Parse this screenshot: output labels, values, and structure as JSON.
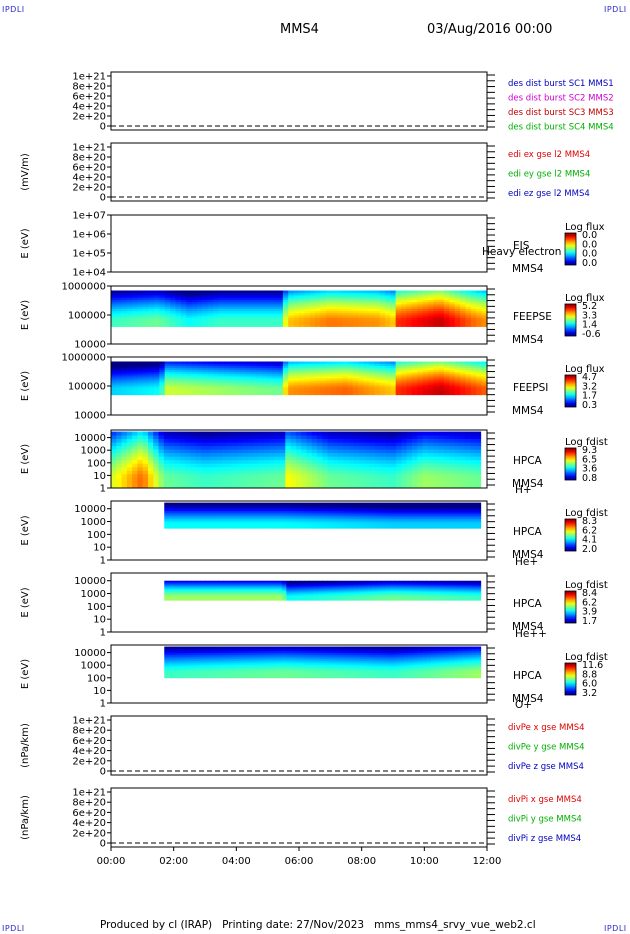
{
  "header": {
    "corner_label": "IPDLI",
    "spacecraft": "MMS4",
    "datetime": "03/Aug/2016 00:00"
  },
  "footer": {
    "produced_by": "Produced by cl (IRAP)",
    "printing_date": "Printing date: 27/Nov/2023",
    "script_name": "mms_mms4_srvy_vue_web2.cl"
  },
  "colors": {
    "panel_border": "#000000",
    "dashed_zero": "#000000",
    "series_red": "#e00000",
    "series_green": "#00b000",
    "series_blue": "#0000c0",
    "series_magenta": "#d000d0",
    "series_darkred": "#c00000"
  },
  "chart_data": [
    {
      "type": "line",
      "panel": "des dist burst",
      "ylabel": "",
      "yticks": [
        "1e+21",
        "8e+20",
        "6e+20",
        "4e+20",
        "2e+20",
        "0"
      ],
      "ylim": [
        0,
        1e+21
      ],
      "xlim": [
        "00:00",
        "12:00"
      ],
      "zero_line": "dashed",
      "series": [
        {
          "name": "des dist burst SC1 MMS1",
          "color": "#0000c0",
          "values": []
        },
        {
          "name": "des dist burst SC2 MMS2",
          "color": "#d000d0",
          "values": []
        },
        {
          "name": "des dist burst SC3 MMS3",
          "color": "#c00000",
          "values": []
        },
        {
          "name": "des dist burst SC4 MMS4",
          "color": "#00b000",
          "values": []
        }
      ]
    },
    {
      "type": "line",
      "panel": "edi e gse l2",
      "ylabel": "(mV/m)",
      "yticks": [
        "1e+21",
        "8e+20",
        "6e+20",
        "4e+20",
        "2e+20",
        "0"
      ],
      "ylim": [
        0,
        1e+21
      ],
      "zero_line": "dashed",
      "series": [
        {
          "name": "edi ex gse l2 MMS4",
          "color": "#e00000",
          "values": []
        },
        {
          "name": "edi ey gse l2 MMS4",
          "color": "#00b000",
          "values": []
        },
        {
          "name": "edi ez gse l2 MMS4",
          "color": "#0000c0",
          "values": []
        }
      ]
    },
    {
      "type": "heatmap",
      "panel": "EIS",
      "ylabel": "E (eV)",
      "yscale": "log",
      "yticks": [
        "1e+07",
        "1e+06",
        "1e+05",
        "1e+04"
      ],
      "ylim": [
        10000,
        10000000
      ],
      "instrument": "EIS",
      "instrument_overlay": "Heavy electron to",
      "spacecraft": "MMS4",
      "colorbar_title": "Log flux",
      "colorbar_ticks": [
        "0.0",
        "0.0",
        "0.0",
        "0.0"
      ],
      "profile": []
    },
    {
      "type": "heatmap",
      "panel": "FEEPSE",
      "ylabel": "E (eV)",
      "yscale": "log",
      "yticks": [
        "1000000",
        "100000",
        "10000"
      ],
      "ylim": [
        10000,
        1000000
      ],
      "instrument": "FEEPSE",
      "spacecraft": "MMS4",
      "colorbar_title": "Log flux",
      "colorbar_ticks": [
        "5.2",
        "3.3",
        "1.4",
        "-0.6"
      ],
      "data_elow": 40000,
      "data_ehigh": 700000,
      "profile": [
        {
          "t": 0.0,
          "level": 0.45
        },
        {
          "t": 1.5,
          "level": 0.5
        },
        {
          "t": 2.5,
          "level": 0.4
        },
        {
          "t": 3.5,
          "level": 0.45
        },
        {
          "t": 5.5,
          "level": 0.45
        },
        {
          "t": 5.6,
          "level": 0.7
        },
        {
          "t": 7.0,
          "level": 0.78
        },
        {
          "t": 8.5,
          "level": 0.75
        },
        {
          "t": 9.0,
          "level": 0.7
        },
        {
          "t": 9.1,
          "level": 0.85
        },
        {
          "t": 10.5,
          "level": 0.95
        },
        {
          "t": 11.5,
          "level": 0.8
        },
        {
          "t": 12.0,
          "level": 0.75
        }
      ]
    },
    {
      "type": "heatmap",
      "panel": "FEEPSI",
      "ylabel": "E (eV)",
      "yscale": "log",
      "yticks": [
        "1000000",
        "100000",
        "10000"
      ],
      "ylim": [
        10000,
        1000000
      ],
      "instrument": "FEEPSI",
      "spacecraft": "MMS4",
      "colorbar_title": "Log flux",
      "colorbar_ticks": [
        "4.7",
        "3.2",
        "1.7",
        "0.3"
      ],
      "data_elow": 50000,
      "data_ehigh": 700000,
      "profile": [
        {
          "t": 0.0,
          "level": 0.35
        },
        {
          "t": 1.6,
          "level": 0.4
        },
        {
          "t": 1.7,
          "level": 0.6
        },
        {
          "t": 3.5,
          "level": 0.55
        },
        {
          "t": 5.5,
          "level": 0.5
        },
        {
          "t": 5.6,
          "level": 0.75
        },
        {
          "t": 7.5,
          "level": 0.8
        },
        {
          "t": 9.0,
          "level": 0.7
        },
        {
          "t": 9.1,
          "level": 0.85
        },
        {
          "t": 10.5,
          "level": 0.95
        },
        {
          "t": 12.0,
          "level": 0.8
        }
      ]
    },
    {
      "type": "heatmap",
      "panel": "HPCA H+",
      "ylabel": "E (eV)",
      "yscale": "log",
      "yticks": [
        "10000",
        "1000",
        "100",
        "10",
        "1"
      ],
      "ylim": [
        1,
        40000
      ],
      "instrument": "HPCA",
      "spacecraft": "MMS4",
      "species": "H+",
      "colorbar_title": "Log fdist",
      "colorbar_ticks": [
        "9.3",
        "6.5",
        "3.6",
        "0.8"
      ],
      "data_elow": 1,
      "data_ehigh": 30000,
      "t_end": 11.8,
      "profile": [
        {
          "t": 0.0,
          "level": 0.6
        },
        {
          "t": 1.0,
          "level": 0.8
        },
        {
          "t": 1.7,
          "level": 0.5
        },
        {
          "t": 3.0,
          "level": 0.45
        },
        {
          "t": 5.5,
          "level": 0.5
        },
        {
          "t": 5.6,
          "level": 0.65
        },
        {
          "t": 7.0,
          "level": 0.5
        },
        {
          "t": 9.0,
          "level": 0.45
        },
        {
          "t": 10.0,
          "level": 0.55
        },
        {
          "t": 11.8,
          "level": 0.5
        }
      ]
    },
    {
      "type": "heatmap",
      "panel": "HPCA He+",
      "ylabel": "E (eV)",
      "yscale": "log",
      "yticks": [
        "10000",
        "1000",
        "100",
        "10",
        "1"
      ],
      "ylim": [
        1,
        40000
      ],
      "instrument": "HPCA",
      "spacecraft": "MMS4",
      "species": "He+",
      "colorbar_title": "Log fdist",
      "colorbar_ticks": [
        "8.3",
        "6.2",
        "4.1",
        "2.0"
      ],
      "data_elow": 300,
      "data_ehigh": 30000,
      "t_start": 1.7,
      "t_end": 11.8,
      "profile": [
        {
          "t": 1.7,
          "level": 0.4
        },
        {
          "t": 5.5,
          "level": 0.4
        },
        {
          "t": 9.0,
          "level": 0.35
        },
        {
          "t": 11.8,
          "level": 0.35
        }
      ]
    },
    {
      "type": "heatmap",
      "panel": "HPCA He++",
      "ylabel": "E (eV)",
      "yscale": "log",
      "yticks": [
        "10000",
        "1000",
        "100",
        "10",
        "1"
      ],
      "ylim": [
        1,
        40000
      ],
      "instrument": "HPCA",
      "spacecraft": "MMS4",
      "species": "He++",
      "colorbar_title": "Log fdist",
      "colorbar_ticks": [
        "8.4",
        "6.2",
        "3.9",
        "1.7"
      ],
      "data_elow": 300,
      "data_ehigh": 10000,
      "t_start": 1.7,
      "t_end": 11.8,
      "profile": [
        {
          "t": 1.7,
          "level": 0.55
        },
        {
          "t": 5.5,
          "level": 0.55
        },
        {
          "t": 5.6,
          "level": 0.4
        },
        {
          "t": 9.0,
          "level": 0.5
        },
        {
          "t": 11.8,
          "level": 0.45
        }
      ]
    },
    {
      "type": "heatmap",
      "panel": "HPCA O+",
      "ylabel": "E (eV)",
      "yscale": "log",
      "yticks": [
        "10000",
        "1000",
        "100",
        "10",
        "1"
      ],
      "ylim": [
        1,
        40000
      ],
      "instrument": "HPCA",
      "spacecraft": "MMS4",
      "species": "O+",
      "colorbar_title": "Log fdist",
      "colorbar_ticks": [
        "11.6",
        "8.8",
        "6.0",
        "3.2"
      ],
      "data_elow": 100,
      "data_ehigh": 30000,
      "t_start": 1.7,
      "t_end": 11.8,
      "profile": [
        {
          "t": 1.7,
          "level": 0.45
        },
        {
          "t": 5.5,
          "level": 0.5
        },
        {
          "t": 9.0,
          "level": 0.45
        },
        {
          "t": 11.8,
          "level": 0.55
        }
      ]
    },
    {
      "type": "line",
      "panel": "divPe gse",
      "ylabel": "(nPa/km)",
      "yticks": [
        "1e+21",
        "8e+20",
        "6e+20",
        "4e+20",
        "2e+20",
        "0"
      ],
      "ylim": [
        0,
        1e+21
      ],
      "zero_line": "dashed",
      "series": [
        {
          "name": "divPe x gse MMS4",
          "color": "#e00000",
          "values": []
        },
        {
          "name": "divPe y gse MMS4",
          "color": "#00b000",
          "values": []
        },
        {
          "name": "divPe z gse MMS4",
          "color": "#0000c0",
          "values": []
        }
      ]
    },
    {
      "type": "line",
      "panel": "divPi gse",
      "ylabel": "(nPa/km)",
      "yticks": [
        "1e+21",
        "8e+20",
        "6e+20",
        "4e+20",
        "2e+20",
        "0"
      ],
      "ylim": [
        0,
        1e+21
      ],
      "zero_line": "dashed",
      "xticks": [
        "00:00",
        "02:00",
        "04:00",
        "06:00",
        "08:00",
        "10:00",
        "12:00"
      ],
      "series": [
        {
          "name": "divPi x gse MMS4",
          "color": "#e00000",
          "values": []
        },
        {
          "name": "divPi y gse MMS4",
          "color": "#00b000",
          "values": []
        },
        {
          "name": "divPi z gse MMS4",
          "color": "#0000c0",
          "values": []
        }
      ]
    }
  ]
}
